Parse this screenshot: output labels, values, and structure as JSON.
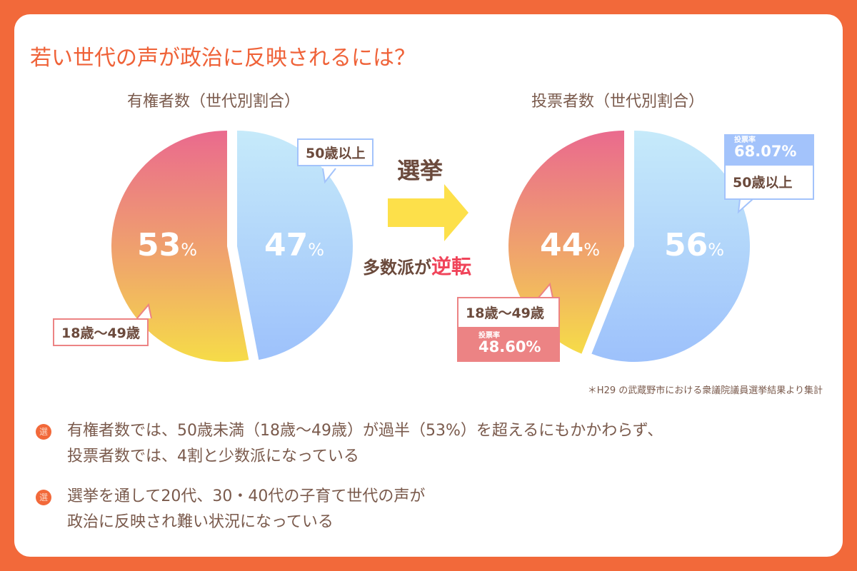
{
  "title": "若い世代の声が政治に反映されるには？",
  "chart_data": [
    {
      "type": "pie",
      "title": "有権者数（世代別割合）",
      "slices": [
        {
          "label": "50歳以上",
          "value": 47,
          "color": "#aecdfb"
        },
        {
          "label": "18歳～49歳",
          "value": 53,
          "color": "#ef8a78"
        }
      ]
    },
    {
      "type": "pie",
      "title": "投票者数（世代別割合）",
      "slices": [
        {
          "label": "50歳以上",
          "value": 56,
          "rate_label": "投票率",
          "rate": "68.07%",
          "color": "#aecdfb"
        },
        {
          "label": "18歳～49歳",
          "value": 44,
          "rate_label": "投票率",
          "rate": "48.60%",
          "color": "#ef8a78"
        }
      ]
    }
  ],
  "middle": {
    "arrow_label": "選挙",
    "caption_a": "多数派が",
    "caption_b": "逆転"
  },
  "pct_sign": "%",
  "note": "＊H29 の武蔵野市における衆議院議員選挙結果より集計",
  "bullets": [
    {
      "icon": "選",
      "lines": [
        "有権者数では、50歳未満（18歳～49歳）が過半（53%）を超えるにもかかわらず、",
        "投票者数では、4割と少数派になっている"
      ]
    },
    {
      "icon": "選",
      "lines": [
        "選挙を通して20代、30・40代の子育て世代の声が",
        "政治に反映され難い状況になっている"
      ]
    }
  ],
  "colors": {
    "background": "#f2693a",
    "title": "#ef6238",
    "text": "#7a5a4c",
    "accent_red": "#f0445a",
    "arrow": "#fde04a"
  }
}
